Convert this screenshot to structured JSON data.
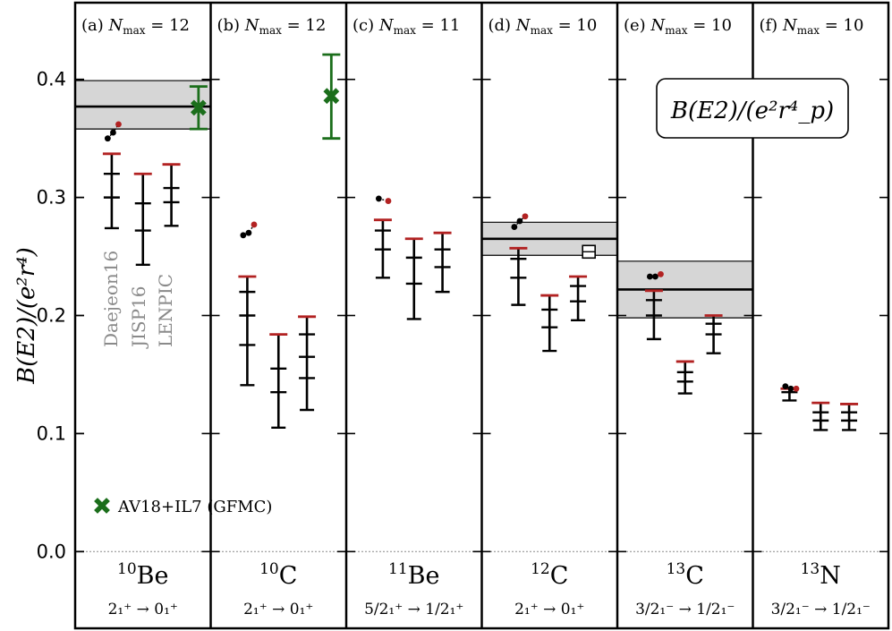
{
  "chart_data": {
    "type": "errorbar-panels",
    "ylabel": "B(E2)/(e²r⁴)",
    "ylim": [
      -0.065,
      0.465
    ],
    "yticks": [
      0.0,
      0.1,
      0.2,
      0.3,
      0.4
    ],
    "ytick_labels": [
      "0.0",
      "0.1",
      "0.2",
      "0.3",
      "0.4"
    ],
    "box_label": "B(E2)/(e²r⁴_p)",
    "interaction_labels": [
      "Daejeon16",
      "JISP16",
      "LENPIC"
    ],
    "legend": {
      "marker": "✖",
      "label": "AV18+IL7 (GFMC)",
      "color": "#1b6e1b"
    },
    "colors": {
      "nmax_marker": "#b22222",
      "bar": "#000000",
      "green": "#1b6e1b",
      "band": "#d6d6d6"
    },
    "panels": [
      {
        "tag": "(a)",
        "nmax_label": "Nmax = 12",
        "nmax": "12",
        "nucleus_mass": "10",
        "nucleus_sym": "Be",
        "transition": "2₁⁺ → 0₁⁺",
        "experiment": {
          "value": 0.377,
          "lo": 0.358,
          "hi": 0.399
        },
        "gfmc": {
          "value": 0.376,
          "lo": 0.358,
          "hi": 0.394
        },
        "dots": [
          0.35,
          0.355,
          0.362
        ],
        "series": [
          {
            "name": "Daejeon16",
            "top": 0.337,
            "ticks": [
              0.32,
              0.3
            ],
            "bottom": 0.274
          },
          {
            "name": "JISP16",
            "top": 0.32,
            "ticks": [
              0.295,
              0.272
            ],
            "bottom": 0.243
          },
          {
            "name": "LENPIC",
            "top": 0.328,
            "ticks": [
              0.308,
              0.296
            ],
            "bottom": 0.276
          }
        ]
      },
      {
        "tag": "(b)",
        "nmax_label": "Nmax = 12",
        "nmax": "12",
        "nucleus_mass": "10",
        "nucleus_sym": "C",
        "transition": "2₁⁺ → 0₁⁺",
        "experiment": null,
        "gfmc": {
          "value": 0.386,
          "lo": 0.35,
          "hi": 0.421
        },
        "dots": [
          0.268,
          0.27,
          0.277
        ],
        "series": [
          {
            "name": "Daejeon16",
            "top": 0.233,
            "ticks": [
              0.22,
              0.2,
              0.175
            ],
            "bottom": 0.141
          },
          {
            "name": "JISP16",
            "top": 0.184,
            "ticks": [
              0.155,
              0.135
            ],
            "bottom": 0.105
          },
          {
            "name": "LENPIC",
            "top": 0.199,
            "ticks": [
              0.184,
              0.165,
              0.147
            ],
            "bottom": 0.12
          }
        ]
      },
      {
        "tag": "(c)",
        "nmax_label": "Nmax = 11",
        "nmax": "11",
        "nucleus_mass": "11",
        "nucleus_sym": "Be",
        "transition": "5/2₁⁺ → 1/2₁⁺",
        "experiment": null,
        "gfmc": null,
        "dots": [
          0.299,
          0.297
        ],
        "series": [
          {
            "name": "Daejeon16",
            "top": 0.281,
            "ticks": [
              0.272,
              0.256
            ],
            "bottom": 0.232
          },
          {
            "name": "JISP16",
            "top": 0.265,
            "ticks": [
              0.249,
              0.227
            ],
            "bottom": 0.197
          },
          {
            "name": "LENPIC",
            "top": 0.27,
            "ticks": [
              0.256,
              0.241
            ],
            "bottom": 0.22
          }
        ]
      },
      {
        "tag": "(d)",
        "nmax_label": "Nmax = 10",
        "nmax": "10",
        "nucleus_mass": "12",
        "nucleus_sym": "C",
        "transition": "2₁⁺ → 0₁⁺",
        "experiment": {
          "value": 0.265,
          "lo": 0.251,
          "hi": 0.279
        },
        "gfmc": null,
        "open_square": 0.254,
        "dots": [
          0.275,
          0.28,
          0.284
        ],
        "series": [
          {
            "name": "Daejeon16",
            "top": 0.257,
            "ticks": [
              0.248,
              0.232
            ],
            "bottom": 0.209
          },
          {
            "name": "JISP16",
            "top": 0.217,
            "ticks": [
              0.205,
              0.19
            ],
            "bottom": 0.17
          },
          {
            "name": "LENPIC",
            "top": 0.233,
            "ticks": [
              0.225,
              0.212
            ],
            "bottom": 0.196
          }
        ]
      },
      {
        "tag": "(e)",
        "nmax_label": "Nmax = 10",
        "nmax": "10",
        "nucleus_mass": "13",
        "nucleus_sym": "C",
        "transition": "3/2₁⁻ → 1/2₁⁻",
        "experiment": {
          "value": 0.222,
          "lo": 0.198,
          "hi": 0.246
        },
        "gfmc": null,
        "dots": [
          0.233,
          0.233,
          0.235
        ],
        "series": [
          {
            "name": "Daejeon16",
            "top": 0.221,
            "ticks": [
              0.213,
              0.2
            ],
            "bottom": 0.18
          },
          {
            "name": "JISP16",
            "top": 0.161,
            "ticks": [
              0.152,
              0.144
            ],
            "bottom": 0.134
          },
          {
            "name": "LENPIC",
            "top": 0.2,
            "ticks": [
              0.193,
              0.184
            ],
            "bottom": 0.168
          }
        ]
      },
      {
        "tag": "(f)",
        "nmax_label": "Nmax = 10",
        "nmax": "10",
        "nucleus_mass": "13",
        "nucleus_sym": "N",
        "transition": "3/2₁⁻ → 1/2₁⁻",
        "experiment": null,
        "gfmc": null,
        "dots": [
          0.14,
          0.138,
          0.138
        ],
        "series": [
          {
            "name": "Daejeon16",
            "top": 0.138,
            "ticks": [
              0.135
            ],
            "bottom": 0.128
          },
          {
            "name": "JISP16",
            "top": 0.126,
            "ticks": [
              0.118,
              0.111
            ],
            "bottom": 0.103
          },
          {
            "name": "LENPIC",
            "top": 0.125,
            "ticks": [
              0.118,
              0.111
            ],
            "bottom": 0.103
          }
        ]
      }
    ]
  }
}
